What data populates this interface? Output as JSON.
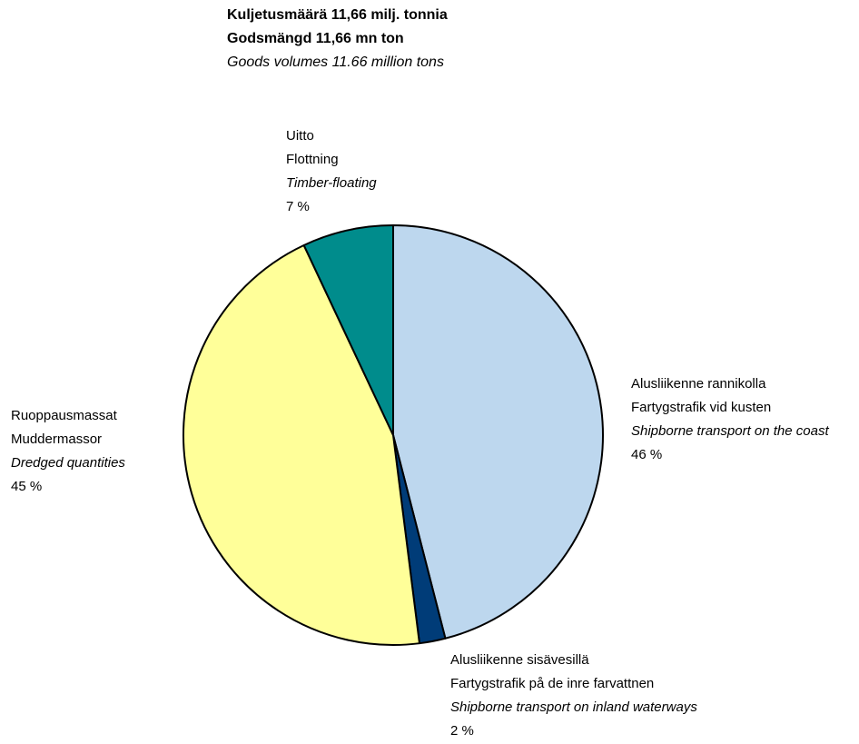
{
  "title": {
    "fi": "Kuljetusmäärä 11,66 milj. tonnia",
    "sv": "Godsmängd 11,66 mn ton",
    "en": "Goods volumes 11.66 million tons"
  },
  "chart_data": {
    "type": "pie",
    "title": "Kuljetusmäärä 11,66 milj. tonnia / Godsmängd 11,66 mn ton / Goods volumes 11.66 million tons",
    "start": "12 o'clock",
    "direction": "clockwise",
    "slices": [
      {
        "fi": "Alusliikenne rannikolla",
        "sv": "Fartygstrafik vid kusten",
        "en": "Shipborne transport on the coast",
        "value": 46,
        "pct_label": "46 %",
        "color": "#BDD7EE"
      },
      {
        "fi": "Alusliikenne sisävesillä",
        "sv": "Fartygstrafik på de inre farvattnen",
        "en": "Shipborne transport on inland waterways",
        "value": 2,
        "pct_label": "2 %",
        "color": "#003C78"
      },
      {
        "fi": "Ruoppausmassat",
        "sv": "Muddermassor",
        "en": "Dredged quantities",
        "value": 45,
        "pct_label": "45 %",
        "color": "#FFFF99"
      },
      {
        "fi": "Uitto",
        "sv": "Flottning",
        "en": "Timber-floating",
        "value": 7,
        "pct_label": "7 %",
        "color": "#008C8C"
      }
    ]
  }
}
